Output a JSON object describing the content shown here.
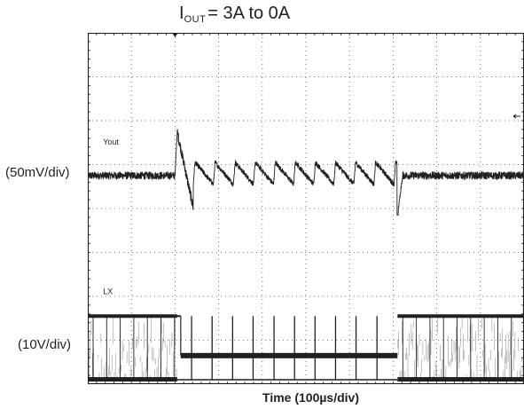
{
  "title": {
    "prefix": "I",
    "subscript": "OUT",
    "rest": "= 3A to 0A"
  },
  "y_labels": {
    "top": "(50mV/div)",
    "bottom": "(10V/div)"
  },
  "x_label": "Time (100µs/div)",
  "chart_data": {
    "type": "line",
    "title": "IOUT = 3A to 0A",
    "xlabel": "Time (100µs/div)",
    "grid": {
      "divisions_x": 10,
      "divisions_y": 8,
      "style": "dotted"
    },
    "trigger_marker": {
      "symbol": "▼",
      "time_div": 2.0
    },
    "channel_marker": {
      "symbol": "←",
      "side": "right",
      "level_div": 6.1
    },
    "xlim_div": [
      0,
      10
    ],
    "ylim_div": [
      0,
      8
    ],
    "series": [
      {
        "name": "Yout",
        "scale": "(50mV/div)",
        "label_at_div": {
          "x": 0.35,
          "y": 5.45
        },
        "baseline_div": 4.75,
        "noise_div": 0.18,
        "load_step_div": [
          2.0,
          7.1
        ],
        "spike_peak_div": 5.75,
        "undershoot_div": 4.0,
        "ripple_period_div": 0.46,
        "ripple_peak_div": 5.05,
        "ripple_trough_div": 4.55,
        "release_dip_div": 3.85,
        "color": "#231f20"
      },
      {
        "name": "LX",
        "scale": "(10V/div)",
        "label_at_div": {
          "x": 0.35,
          "y": 2.05
        },
        "high_div": 1.55,
        "low_div": 0.1,
        "pulse_level_div": 0.65,
        "pulse_times_div": [
          2.38,
          2.85,
          3.32,
          3.79,
          4.27,
          4.74,
          5.21,
          5.68,
          6.15,
          6.63
        ],
        "switching_region_div": [
          [
            0,
            2.05
          ],
          [
            7.1,
            10
          ]
        ],
        "color": "#231f20"
      }
    ]
  }
}
